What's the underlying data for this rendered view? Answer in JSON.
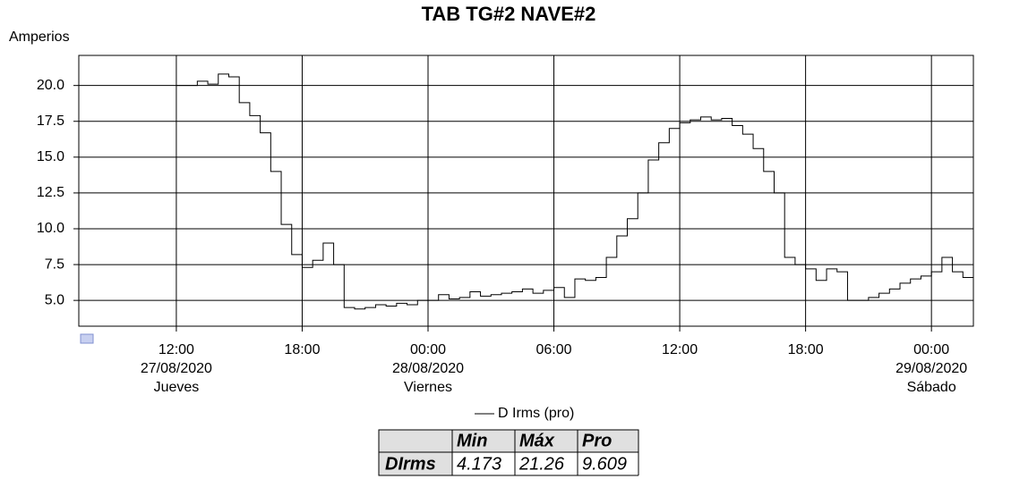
{
  "chart_data": {
    "type": "line",
    "title": "TAB TG#2 NAVE#2",
    "y_label": "Amperios",
    "x": [
      "27/08/2020 12:00",
      "27/08/2020 12:30",
      "27/08/2020 13:00",
      "27/08/2020 13:30",
      "27/08/2020 14:00",
      "27/08/2020 14:30",
      "27/08/2020 15:00",
      "27/08/2020 15:30",
      "27/08/2020 16:00",
      "27/08/2020 16:30",
      "27/08/2020 17:00",
      "27/08/2020 17:30",
      "27/08/2020 18:00",
      "27/08/2020 18:30",
      "27/08/2020 19:00",
      "27/08/2020 19:30",
      "27/08/2020 20:00",
      "27/08/2020 20:30",
      "27/08/2020 21:00",
      "27/08/2020 21:30",
      "27/08/2020 22:00",
      "27/08/2020 22:30",
      "27/08/2020 23:00",
      "27/08/2020 23:30",
      "28/08/2020 00:00",
      "28/08/2020 00:30",
      "28/08/2020 01:00",
      "28/08/2020 01:30",
      "28/08/2020 02:00",
      "28/08/2020 02:30",
      "28/08/2020 03:00",
      "28/08/2020 03:30",
      "28/08/2020 04:00",
      "28/08/2020 04:30",
      "28/08/2020 05:00",
      "28/08/2020 05:30",
      "28/08/2020 06:00",
      "28/08/2020 06:30",
      "28/08/2020 07:00",
      "28/08/2020 07:30",
      "28/08/2020 08:00",
      "28/08/2020 08:30",
      "28/08/2020 09:00",
      "28/08/2020 09:30",
      "28/08/2020 10:00",
      "28/08/2020 10:30",
      "28/08/2020 11:00",
      "28/08/2020 11:30",
      "28/08/2020 12:00",
      "28/08/2020 12:30",
      "28/08/2020 13:00",
      "28/08/2020 13:30",
      "28/08/2020 14:00",
      "28/08/2020 14:30",
      "28/08/2020 15:00",
      "28/08/2020 15:30",
      "28/08/2020 16:00",
      "28/08/2020 16:30",
      "28/08/2020 17:00",
      "28/08/2020 17:30",
      "28/08/2020 18:00",
      "28/08/2020 18:30",
      "28/08/2020 19:00",
      "28/08/2020 19:30",
      "28/08/2020 20:00",
      "28/08/2020 20:30",
      "28/08/2020 21:00",
      "28/08/2020 21:30",
      "28/08/2020 22:00",
      "28/08/2020 22:30",
      "28/08/2020 23:00",
      "28/08/2020 23:30",
      "29/08/2020 00:00",
      "29/08/2020 00:30",
      "29/08/2020 01:00",
      "29/08/2020 01:30",
      "29/08/2020 02:00"
    ],
    "series": [
      {
        "name": "D Irms (pro)",
        "color": "#000000",
        "values": [
          20.0,
          20.0,
          20.3,
          20.1,
          20.8,
          20.6,
          18.8,
          17.9,
          16.7,
          14.0,
          10.3,
          8.2,
          7.3,
          7.8,
          9.0,
          7.5,
          4.5,
          4.4,
          4.5,
          4.7,
          4.6,
          4.8,
          4.7,
          5.0,
          5.0,
          5.4,
          5.1,
          5.2,
          5.6,
          5.3,
          5.4,
          5.5,
          5.6,
          5.8,
          5.5,
          5.7,
          5.9,
          5.2,
          6.5,
          6.4,
          6.6,
          8.0,
          9.5,
          10.7,
          12.5,
          14.8,
          16.0,
          17.0,
          17.4,
          17.6,
          17.8,
          17.6,
          17.7,
          17.2,
          16.6,
          15.6,
          14.0,
          12.5,
          8.0,
          7.5,
          7.2,
          6.4,
          7.2,
          7.0,
          5.0,
          5.0,
          5.2,
          5.5,
          5.8,
          6.2,
          6.5,
          6.7,
          7.0,
          8.0,
          7.0,
          6.6,
          6.6
        ]
      }
    ],
    "xlim": [
      "27/08/2020 07:21",
      "29/08/2020 02:00"
    ],
    "xticks": [
      {
        "value": "27/08/2020 12:00",
        "label": "12:00",
        "date": "27/08/2020",
        "day": "Jueves"
      },
      {
        "value": "27/08/2020 18:00",
        "label": "18:00"
      },
      {
        "value": "28/08/2020 00:00",
        "label": "00:00",
        "date": "28/08/2020",
        "day": "Viernes"
      },
      {
        "value": "28/08/2020 06:00",
        "label": "06:00"
      },
      {
        "value": "28/08/2020 12:00",
        "label": "12:00"
      },
      {
        "value": "28/08/2020 18:00",
        "label": "18:00"
      },
      {
        "value": "29/08/2020 00:00",
        "label": "00:00",
        "date": "29/08/2020",
        "day": "Sábado"
      }
    ],
    "ylim": [
      3.2,
      22.1
    ],
    "yticks": [
      {
        "value": 5,
        "label": "5.0"
      },
      {
        "value": 7.5,
        "label": "7.5"
      },
      {
        "value": 10,
        "label": "10.0"
      },
      {
        "value": 12.5,
        "label": "12.5"
      },
      {
        "value": 15,
        "label": "15.0"
      },
      {
        "value": 17.5,
        "label": "17.5"
      },
      {
        "value": 20,
        "label": "20.0"
      }
    ],
    "grid": true,
    "stats": {
      "columns": [
        "Min",
        "Máx",
        "Pro"
      ],
      "rows": [
        {
          "name": "DIrms",
          "values": [
            4.173,
            21.26,
            9.609
          ]
        }
      ]
    }
  }
}
